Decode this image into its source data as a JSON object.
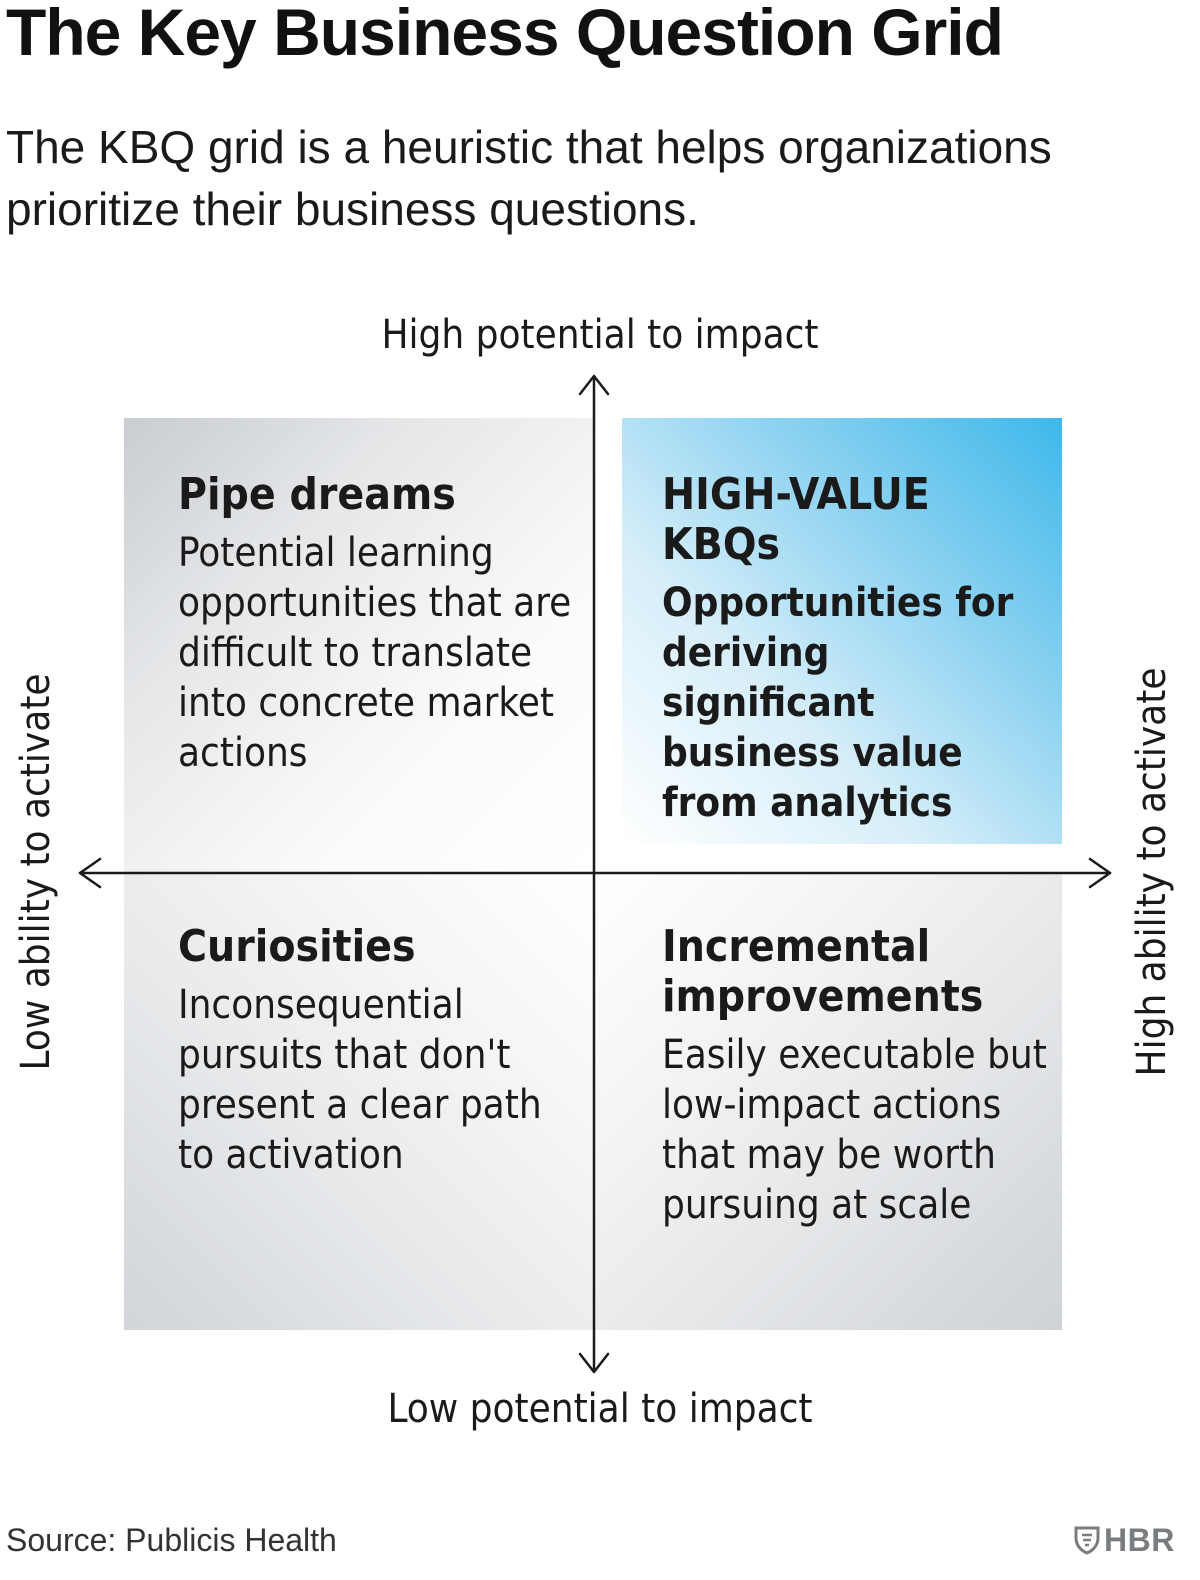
{
  "header": {
    "title": "The Key Business Question Grid",
    "subtitle": "The KBQ grid is a heuristic that helps organizations prioritize their business questions."
  },
  "axes": {
    "top": "High potential to impact",
    "bottom": "Low potential to impact",
    "left": "Low ability to activate",
    "right": "High ability to activate"
  },
  "quadrants": {
    "top_left": {
      "title": "Pipe dreams",
      "description": "Potential learning opportunities that are difficult to translate into concrete market actions"
    },
    "top_right": {
      "title": "HIGH-VALUE KBQs",
      "description": "Opportunities for deriving significant business value from analytics"
    },
    "bottom_left": {
      "title": "Curiosities",
      "description": "Inconsequential pursuits that don't present a clear path to activation"
    },
    "bottom_right": {
      "title": "Incremental improvements",
      "description": "Easily executable but low-impact actions that may be worth pursuing at scale"
    }
  },
  "footer": {
    "source": "Source: Publicis Health",
    "logo_text": "HBR"
  },
  "colors": {
    "highlight": "#3db8ea",
    "neutral": "#c9ccd0",
    "axis": "#1a1a1a"
  }
}
